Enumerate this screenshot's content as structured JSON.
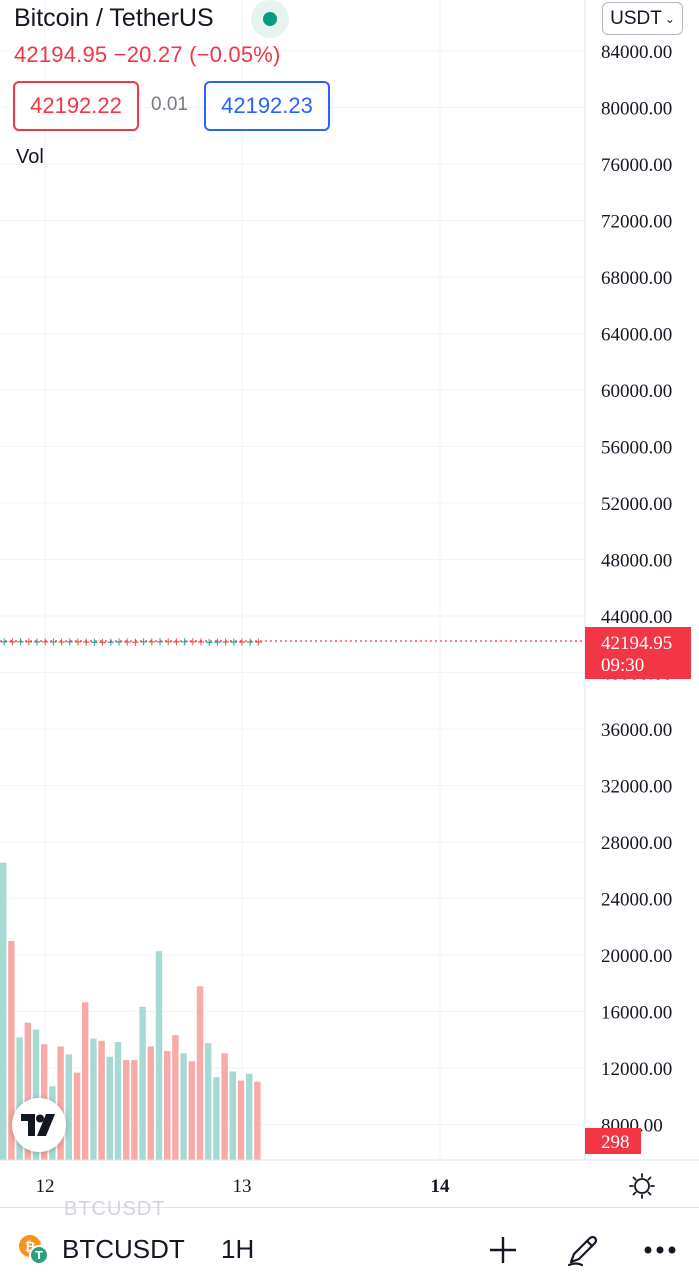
{
  "header": {
    "title": "Bitcoin / TetherUS",
    "price_line": "42194.95 −20.27 (−0.05%)",
    "bid": "42192.22",
    "spread": "0.01",
    "ask": "42192.23",
    "vol_label": "Vol",
    "currency": "USDT"
  },
  "price_axis": {
    "labels": [
      "84000.00",
      "80000.00",
      "76000.00",
      "72000.00",
      "68000.00",
      "64000.00",
      "60000.00",
      "56000.00",
      "52000.00",
      "48000.00",
      "44000.00",
      "40000.00",
      "36000.00",
      "32000.00",
      "28000.00",
      "24000.00",
      "20000.00",
      "16000.00",
      "12000.00",
      "8000.00"
    ],
    "current_price": "42194.95",
    "countdown": "09:30",
    "volume_tag": "298"
  },
  "time_axis": {
    "labels": [
      "12",
      "13",
      "14"
    ]
  },
  "bottom_bar": {
    "ghost_symbol": "BTCUSDT",
    "symbol": "BTCUSDT",
    "interval": "1H"
  },
  "colors": {
    "up": "#26a69a",
    "down": "#ef5350",
    "price_line": "#f23645"
  },
  "icons": [
    "live-status-icon",
    "chevron-down-icon",
    "tradingview-logo-icon",
    "settings-icon",
    "bitcoin-icon",
    "plus-icon",
    "pencil-icon",
    "more-icon"
  ],
  "chart_data": {
    "type": "bar",
    "series": [
      {
        "name": "Vol",
        "values": [
          26.2,
          19.3,
          10.8,
          12.1,
          11.5,
          10.2,
          6.5,
          10.0,
          9.3,
          7.7,
          13.9,
          10.7,
          10.5,
          9.1,
          10.4,
          8.8,
          8.8,
          13.5,
          10.0,
          18.4,
          9.6,
          11.0,
          9.4,
          8.7,
          15.3,
          10.3,
          7.3,
          9.4,
          7.8,
          7.0,
          7.6,
          6.9
        ],
        "direction": [
          "up",
          "down",
          "up",
          "down",
          "up",
          "down",
          "up",
          "down",
          "up",
          "down",
          "down",
          "up",
          "down",
          "up",
          "up",
          "down",
          "down",
          "up",
          "down",
          "up",
          "down",
          "down",
          "up",
          "down",
          "down",
          "up",
          "up",
          "down",
          "up",
          "down",
          "up",
          "down"
        ]
      }
    ],
    "price": {
      "last": 42194.95,
      "open_approx": 42215.22
    },
    "x_ticks": [
      "12",
      "13",
      "14"
    ],
    "y_range": [
      8000,
      84000
    ]
  }
}
